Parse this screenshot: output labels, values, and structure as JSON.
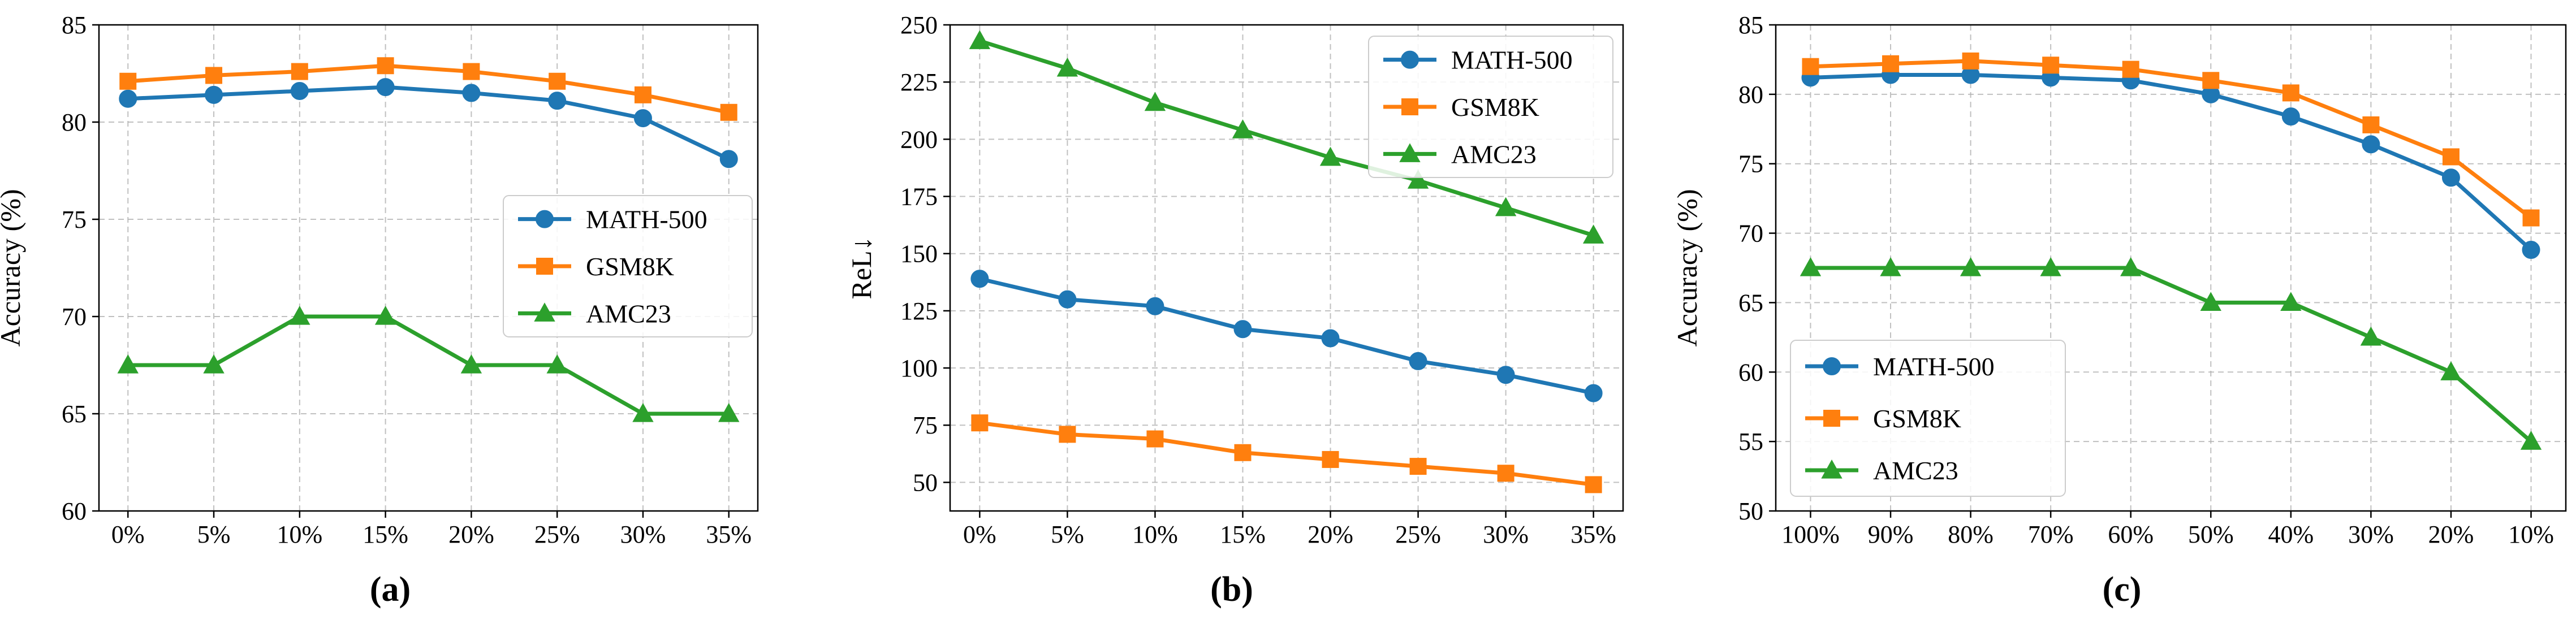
{
  "chart_data": [
    {
      "type": "line",
      "caption": "(a)",
      "xlabel": "",
      "ylabel": "Accuracy (%)",
      "categories": [
        "0%",
        "5%",
        "10%",
        "15%",
        "20%",
        "25%",
        "30%",
        "35%"
      ],
      "ylim": [
        60,
        85
      ],
      "yticks": [
        60,
        65,
        70,
        75,
        80,
        85
      ],
      "grid": true,
      "legend": "center-right",
      "series": [
        {
          "name": "MATH-500",
          "color": "#1f77b4",
          "marker": "circle",
          "values": [
            81.2,
            81.4,
            81.6,
            81.8,
            81.5,
            81.1,
            80.2,
            78.1
          ]
        },
        {
          "name": "GSM8K",
          "color": "#ff7f0e",
          "marker": "square",
          "values": [
            82.1,
            82.4,
            82.6,
            82.9,
            82.6,
            82.1,
            81.4,
            80.5
          ]
        },
        {
          "name": "AMC23",
          "color": "#2ca02c",
          "marker": "triangle",
          "values": [
            67.5,
            67.5,
            70.0,
            70.0,
            67.5,
            67.5,
            65.0,
            65.0
          ]
        }
      ]
    },
    {
      "type": "line",
      "caption": "(b)",
      "xlabel": "",
      "ylabel": "ReL↓",
      "categories": [
        "0%",
        "5%",
        "10%",
        "15%",
        "20%",
        "25%",
        "30%",
        "35%"
      ],
      "ylim": [
        37.5,
        250
      ],
      "yticks": [
        50,
        75,
        100,
        125,
        150,
        175,
        200,
        225,
        250
      ],
      "grid": true,
      "legend": "top-right",
      "series": [
        {
          "name": "MATH-500",
          "color": "#1f77b4",
          "marker": "circle",
          "values": [
            139,
            130,
            127,
            117,
            113,
            103,
            97,
            89
          ]
        },
        {
          "name": "GSM8K",
          "color": "#ff7f0e",
          "marker": "square",
          "values": [
            76,
            71,
            69,
            63,
            60,
            57,
            54,
            49
          ]
        },
        {
          "name": "AMC23",
          "color": "#2ca02c",
          "marker": "triangle",
          "values": [
            243,
            231,
            216,
            204,
            192,
            182,
            170,
            158
          ]
        }
      ]
    },
    {
      "type": "line",
      "caption": "(c)",
      "xlabel": "",
      "ylabel": "Accuracy (%)",
      "categories": [
        "100%",
        "90%",
        "80%",
        "70%",
        "60%",
        "50%",
        "40%",
        "30%",
        "20%",
        "10%"
      ],
      "ylim": [
        50,
        85
      ],
      "yticks": [
        50,
        55,
        60,
        65,
        70,
        75,
        80,
        85
      ],
      "grid": true,
      "legend": "bottom-left",
      "series": [
        {
          "name": "MATH-500",
          "color": "#1f77b4",
          "marker": "circle",
          "values": [
            81.2,
            81.4,
            81.4,
            81.2,
            81.0,
            80.0,
            78.4,
            76.4,
            74.0,
            68.8
          ]
        },
        {
          "name": "GSM8K",
          "color": "#ff7f0e",
          "marker": "square",
          "values": [
            82.0,
            82.2,
            82.4,
            82.1,
            81.8,
            81.0,
            80.1,
            77.8,
            75.5,
            71.1
          ]
        },
        {
          "name": "AMC23",
          "color": "#2ca02c",
          "marker": "triangle",
          "values": [
            67.5,
            67.5,
            67.5,
            67.5,
            67.5,
            65.0,
            65.0,
            62.5,
            60.0,
            55.0
          ]
        }
      ]
    }
  ]
}
